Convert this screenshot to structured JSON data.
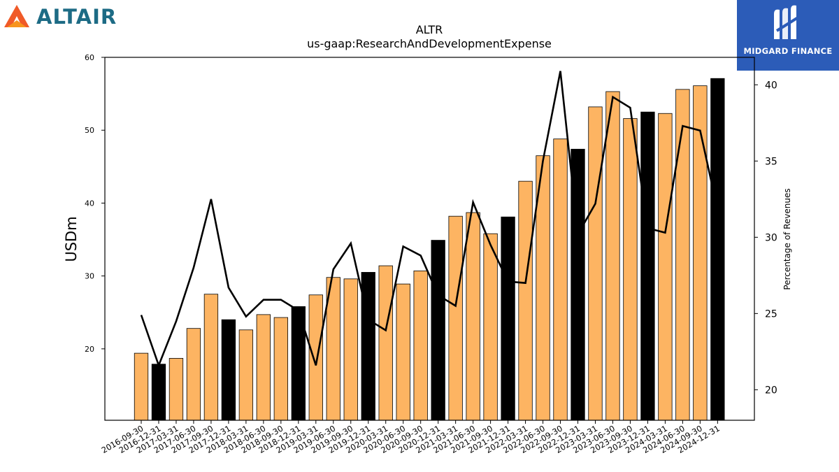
{
  "brand_left": {
    "name": "ALTAIR",
    "icon": "altair-logo-icon",
    "color": "#1d6b85"
  },
  "brand_right": {
    "name": "MIDGARD FINANCE",
    "icon": "midgard-logo-icon",
    "background": "#2c5cb8"
  },
  "chart_data": {
    "type": "bar",
    "title": "ALTR",
    "subtitle": "us-gaap:ResearchAndDevelopmentExpense",
    "ylabel": "USDm",
    "y2label": "Percentage of Revenues",
    "ylim": [
      10.2,
      60
    ],
    "y2lim": [
      18.0,
      41.8
    ],
    "yticks": [
      20,
      30,
      40,
      50,
      60
    ],
    "y2ticks": [
      20,
      25,
      30,
      35,
      40
    ],
    "grid": false,
    "colors": {
      "bar_default": "#fdb462",
      "bar_q4": "#000000",
      "line": "#000000"
    },
    "categories": [
      "2016-09-30",
      "2016-12-31",
      "2017-03-31",
      "2017-06-30",
      "2017-09-30",
      "2017-12-31",
      "2018-03-31",
      "2018-06-30",
      "2018-09-30",
      "2018-12-31",
      "2019-03-31",
      "2019-06-30",
      "2019-09-30",
      "2019-12-31",
      "2020-03-31",
      "2020-06-30",
      "2020-09-30",
      "2020-12-31",
      "2021-03-31",
      "2021-06-30",
      "2021-09-30",
      "2021-12-31",
      "2022-03-31",
      "2022-06-30",
      "2022-09-30",
      "2022-12-31",
      "2023-03-31",
      "2023-06-30",
      "2023-09-30",
      "2023-12-31",
      "2024-03-31",
      "2024-06-30",
      "2024-09-30",
      "2024-12-31"
    ],
    "series": [
      {
        "type": "bar",
        "values": [
          19.4,
          17.9,
          18.7,
          22.8,
          27.5,
          24.0,
          22.6,
          24.7,
          24.3,
          25.8,
          27.4,
          29.8,
          29.6,
          30.5,
          31.4,
          28.9,
          30.7,
          34.9,
          38.2,
          38.7,
          35.8,
          38.1,
          43.0,
          46.5,
          48.8,
          47.4,
          53.2,
          55.3,
          51.6,
          52.5,
          52.3,
          55.6,
          56.1,
          57.1
        ]
      },
      {
        "type": "line",
        "axis": "right",
        "values": [
          24.9,
          21.6,
          24.5,
          28.0,
          32.5,
          26.7,
          24.8,
          25.9,
          25.9,
          25.2,
          21.6,
          27.9,
          29.6,
          24.6,
          23.9,
          29.4,
          28.8,
          26.2,
          25.5,
          32.3,
          29.5,
          27.1,
          27.0,
          35.0,
          40.9,
          30.2,
          32.2,
          39.2,
          38.5,
          30.6,
          30.3,
          37.3,
          37.0,
          31.8
        ]
      }
    ]
  }
}
